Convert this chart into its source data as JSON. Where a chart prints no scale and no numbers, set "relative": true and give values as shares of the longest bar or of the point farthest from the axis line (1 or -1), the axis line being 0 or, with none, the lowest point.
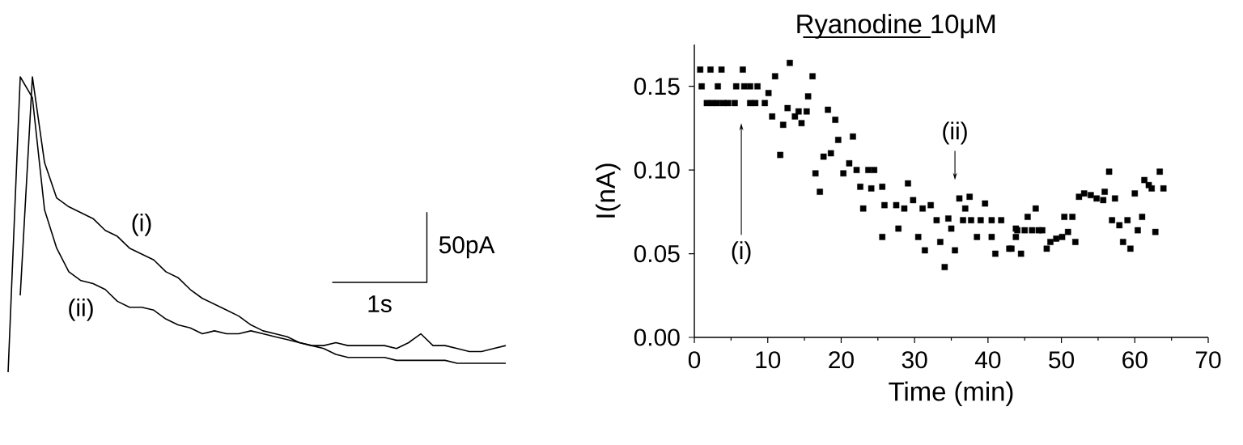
{
  "chart_data": [
    {
      "type": "line",
      "relative": true,
      "line_style": "solid",
      "marker": "none",
      "categories": [
        null,
        null,
        null,
        null,
        null,
        null,
        null,
        null,
        null,
        null,
        null,
        null,
        null,
        null,
        null,
        null,
        null,
        null,
        null,
        null,
        null,
        null,
        null,
        null,
        null,
        null,
        null,
        null,
        null,
        null,
        null,
        null,
        null,
        null,
        null,
        null,
        null,
        null,
        null,
        null,
        null,
        null
      ],
      "series": [
        {
          "name": "(i)",
          "color": "#000000",
          "values": [
            null,
            0.26,
            1.0,
            0.71,
            0.59,
            0.56,
            0.54,
            0.52,
            0.48,
            0.46,
            0.42,
            0.4,
            0.38,
            0.34,
            0.32,
            0.28,
            0.25,
            0.23,
            0.21,
            0.19,
            0.16,
            0.14,
            0.13,
            0.12,
            0.1,
            0.09,
            0.09,
            0.1,
            0.09,
            0.09,
            0.09,
            0.09,
            0.08,
            0.1,
            0.13,
            0.09,
            0.09,
            0.08,
            0.07,
            0.07,
            0.08,
            0.09
          ]
        },
        {
          "name": "(ii)",
          "color": "#000000",
          "values": [
            0,
            1.0,
            0.93,
            0.55,
            0.42,
            0.34,
            0.31,
            0.3,
            0.28,
            0.24,
            0.22,
            0.22,
            0.21,
            0.18,
            0.16,
            0.15,
            0.13,
            0.14,
            0.13,
            0.13,
            0.14,
            0.13,
            0.12,
            0.11,
            0.1,
            0.09,
            0.08,
            0.06,
            0.05,
            0.05,
            0.05,
            0.05,
            0.04,
            0.04,
            0.04,
            0.04,
            0.04,
            0.03,
            0.03,
            0.03,
            0.03,
            0.03
          ]
        }
      ],
      "annotations": [
        "50pA",
        "1s"
      ]
    },
    {
      "type": "scatter",
      "marker": "square",
      "color": "#000000",
      "xlabel": "Time (min)",
      "ylabel": "I(nA)",
      "xlim": [
        0,
        70
      ],
      "ylim": [
        0,
        0.175
      ],
      "xticks": [
        0,
        10,
        20,
        30,
        40,
        50,
        60,
        70
      ],
      "yticks": [
        {
          "value": 0,
          "label": "0.00"
        },
        {
          "value": 0.05,
          "label": "0.05"
        },
        {
          "value": 0.1,
          "label": "0.10"
        },
        {
          "value": 0.15,
          "label": "0.15"
        }
      ],
      "title": "Ryanodine 10μM",
      "annotations": [
        "(i)",
        "(ii)"
      ],
      "x": [
        0.8,
        2.2,
        3.7,
        6.6,
        1.0,
        3.2,
        5.7,
        6.8,
        7.6,
        8.6,
        1.7,
        2.4,
        3.1,
        3.9,
        4.6,
        5.5,
        7.6,
        8.3,
        9.6,
        11.0,
        13.0,
        16.1,
        10.1,
        15.5,
        12.7,
        14.2,
        15.3,
        18.2,
        10.6,
        13.7,
        14.6,
        12.1,
        19.2,
        19.6,
        21.6,
        11.7,
        17.6,
        18.6,
        21.1,
        22.1,
        23.7,
        16.5,
        20.3,
        17.1,
        22.6,
        24.1,
        23.0,
        24.5,
        25.6,
        29.1,
        25.9,
        27.5,
        28.6,
        29.8,
        31.1,
        32.2,
        33.0,
        34.6,
        36.6,
        37.7,
        39.0,
        40.5,
        36.1,
        37.5,
        36.9,
        39.6,
        27.8,
        25.6,
        30.5,
        33.5,
        31.4,
        35.5,
        34.1,
        35.0,
        38.5,
        40.5,
        41.0,
        42.9,
        43.8,
        43.8,
        41.8,
        43.2,
        44.5,
        44.0,
        45.0,
        46.0,
        46.9,
        47.4,
        45.4,
        46.5,
        48.0,
        48.5,
        49.3,
        50.1,
        50.9,
        51.9,
        50.4,
        51.5,
        52.4,
        53.1,
        54.0,
        54.8,
        55.7,
        55.9,
        56.5,
        57.3,
        56.9,
        57.9,
        59.0,
        58.4,
        59.4,
        60.0,
        60.4,
        61.0,
        61.3,
        61.9,
        62.3,
        63.4,
        63.9,
        62.8
      ],
      "values": [
        0.16,
        0.16,
        0.16,
        0.16,
        0.15,
        0.15,
        0.15,
        0.15,
        0.15,
        0.15,
        0.14,
        0.14,
        0.14,
        0.14,
        0.14,
        0.14,
        0.14,
        0.14,
        0.14,
        0.156,
        0.164,
        0.156,
        0.146,
        0.144,
        0.137,
        0.135,
        0.135,
        0.136,
        0.132,
        0.132,
        0.128,
        0.127,
        0.13,
        0.118,
        0.12,
        0.109,
        0.108,
        0.11,
        0.104,
        0.1,
        0.1,
        0.098,
        0.098,
        0.087,
        0.09,
        0.089,
        0.077,
        0.1,
        0.09,
        0.092,
        0.079,
        0.079,
        0.077,
        0.082,
        0.077,
        0.079,
        0.07,
        0.071,
        0.07,
        0.07,
        0.07,
        0.07,
        0.083,
        0.084,
        0.077,
        0.08,
        0.065,
        0.06,
        0.06,
        0.057,
        0.052,
        0.052,
        0.042,
        0.065,
        0.06,
        0.06,
        0.05,
        0.053,
        0.065,
        0.06,
        0.07,
        0.053,
        0.05,
        0.064,
        0.064,
        0.064,
        0.064,
        0.064,
        0.072,
        0.077,
        0.053,
        0.057,
        0.059,
        0.06,
        0.063,
        0.057,
        0.072,
        0.072,
        0.084,
        0.086,
        0.085,
        0.083,
        0.082,
        0.087,
        0.099,
        0.083,
        0.07,
        0.067,
        0.07,
        0.057,
        0.053,
        0.086,
        0.064,
        0.072,
        0.094,
        0.091,
        0.089,
        0.099,
        0.089,
        0.063
      ]
    }
  ]
}
